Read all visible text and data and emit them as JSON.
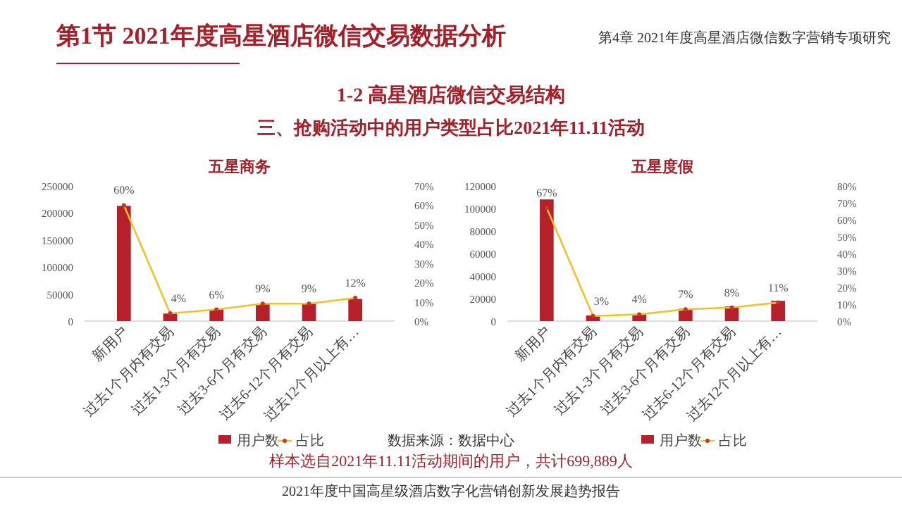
{
  "chart_data": [
    {
      "type": "other",
      "title": "第1节 2021年度高星酒店微信交易数据分析",
      "annotations": [
        "第4章 2021年度高星酒店微信数字营销专项研究",
        "1-2 高星酒店微信交易结构",
        "三、抢购活动中的用户类型占比2021年11.11活动",
        "数据来源：数据中心",
        "样本选自2021年11.11活动期间的用户，共计699,889人",
        "2021年度中国高星级酒店数字化营销创新发展趋势报告"
      ]
    },
    {
      "type": "bar",
      "title": "五星商务",
      "categories": [
        "新用户",
        "过去1个月内有交易",
        "过去1-3个月有交易",
        "过去3-6个月有交易",
        "过去6-12个月有交易",
        "过去12个月以上有…"
      ],
      "series": [
        {
          "name": "用户数",
          "type": "bar",
          "color": "#b5202a",
          "values": [
            213000,
            14000,
            22000,
            31000,
            32000,
            41000
          ]
        },
        {
          "name": "占比",
          "type": "line",
          "axis": "y2",
          "color": "#f2c12e",
          "values": [
            60,
            4,
            6,
            9,
            9,
            12
          ],
          "value_labels": [
            "60%",
            "4%",
            "6%",
            "9%",
            "9%",
            "12%"
          ]
        }
      ],
      "ylim": [
        0,
        250000
      ],
      "yticks": [
        0,
        50000,
        100000,
        150000,
        200000,
        250000
      ],
      "y2lim": [
        0,
        70
      ],
      "y2ticks": [
        {
          "value": 0,
          "label": "0%"
        },
        {
          "value": 10,
          "label": "10%"
        },
        {
          "value": 20,
          "label": "20%"
        },
        {
          "value": 30,
          "label": "30%"
        },
        {
          "value": 40,
          "label": "40%"
        },
        {
          "value": 50,
          "label": "50%"
        },
        {
          "value": 60,
          "label": "60%"
        },
        {
          "value": 70,
          "label": "70%"
        }
      ],
      "legend": "bottom",
      "marker": "circle"
    },
    {
      "type": "bar",
      "title": "五星度假",
      "categories": [
        "新用户",
        "过去1个月内有交易",
        "过去1-3个月有交易",
        "过去3-6个月有交易",
        "过去6-12个月有交易",
        "过去12个月以上有…"
      ],
      "series": [
        {
          "name": "用户数",
          "type": "bar",
          "color": "#b5202a",
          "values": [
            108000,
            5000,
            6000,
            11000,
            13000,
            18000
          ]
        },
        {
          "name": "占比",
          "type": "line",
          "axis": "y2",
          "color": "#f2c12e",
          "values": [
            67,
            3,
            4,
            7,
            8,
            11
          ],
          "value_labels": [
            "67%",
            "3%",
            "4%",
            "7%",
            "8%",
            "11%"
          ]
        }
      ],
      "ylim": [
        0,
        120000
      ],
      "yticks": [
        0,
        20000,
        40000,
        60000,
        80000,
        100000,
        120000
      ],
      "y2lim": [
        0,
        80
      ],
      "y2ticks": [
        {
          "value": 0,
          "label": "0%"
        },
        {
          "value": 10,
          "label": "10%"
        },
        {
          "value": 20,
          "label": "20%"
        },
        {
          "value": 30,
          "label": "30%"
        },
        {
          "value": 40,
          "label": "40%"
        },
        {
          "value": 50,
          "label": "50%"
        },
        {
          "value": 60,
          "label": "60%"
        },
        {
          "value": 70,
          "label": "70%"
        },
        {
          "value": 80,
          "label": "80%"
        }
      ],
      "legend": "bottom",
      "marker": "circle"
    }
  ]
}
